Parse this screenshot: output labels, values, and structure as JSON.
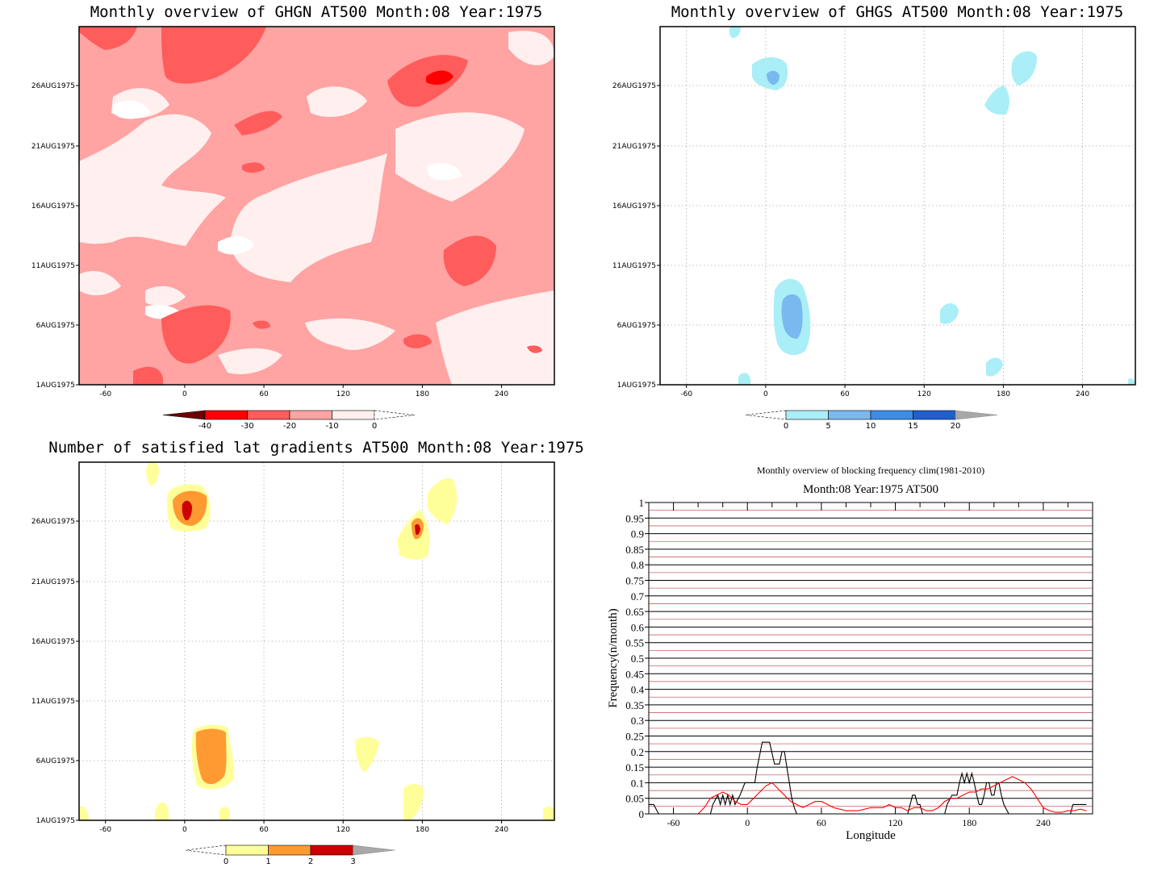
{
  "panels": {
    "ghgn": {
      "title": "Monthly overview of GHGN AT500 Month:08 Year:1975",
      "y_ticks": [
        "26AUG1975",
        "21AUG1975",
        "16AUG1975",
        "11AUG1975",
        "6AUG1975",
        "1AUG1975"
      ],
      "x_ticks": [
        "-60",
        "0",
        "60",
        "120",
        "180",
        "240"
      ],
      "colorbar": [
        "-40",
        "-30",
        "-20",
        "-10",
        "0"
      ],
      "colors": [
        "#6b0000",
        "#ff0000",
        "#ff5c5c",
        "#ffa3a3",
        "#fff0ef"
      ]
    },
    "ghgs": {
      "title": "Monthly overview of GHGS AT500 Month:08 Year:1975",
      "y_ticks": [
        "26AUG1975",
        "21AUG1975",
        "16AUG1975",
        "11AUG1975",
        "6AUG1975",
        "1AUG1975"
      ],
      "x_ticks": [
        "-60",
        "0",
        "60",
        "120",
        "180",
        "240"
      ],
      "colorbar": [
        "0",
        "5",
        "10",
        "15",
        "20"
      ],
      "colors": [
        "#aaeef7",
        "#7ab8f0",
        "#3a8ee8",
        "#1f5fd0",
        "#a8a8a8"
      ]
    },
    "lat": {
      "title": "Number of satisfied lat gradients AT500 Month:08 Year:1975",
      "y_ticks": [
        "26AUG1975",
        "21AUG1975",
        "16AUG1975",
        "11AUG1975",
        "6AUG1975",
        "1AUG1975"
      ],
      "x_ticks": [
        "-60",
        "0",
        "60",
        "120",
        "180",
        "240"
      ],
      "colorbar": [
        "0",
        "1",
        "2",
        "3"
      ],
      "colors": [
        "#ffff99",
        "#ff9a33",
        "#cc0000",
        "#a8a8a8"
      ]
    }
  },
  "chart_data": [
    {
      "type": "heatmap",
      "title": "Monthly overview of GHGN AT500 Month:08 Year:1975",
      "x_range": [
        -80,
        280
      ],
      "y_range": [
        "1AUG1975",
        "31AUG1975"
      ],
      "levels": [
        -40,
        -30,
        -20,
        -10,
        0
      ]
    },
    {
      "type": "heatmap",
      "title": "Monthly overview of GHGS AT500 Month:08 Year:1975",
      "x_range": [
        -80,
        280
      ],
      "y_range": [
        "1AUG1975",
        "31AUG1975"
      ],
      "levels": [
        0,
        5,
        10,
        15,
        20
      ]
    },
    {
      "type": "heatmap",
      "title": "Number of satisfied lat gradients AT500 Month:08 Year:1975",
      "x_range": [
        -80,
        280
      ],
      "y_range": [
        "1AUG1975",
        "31AUG1975"
      ],
      "levels": [
        0,
        1,
        2,
        3
      ]
    },
    {
      "type": "line",
      "title": "Monthly overview of blocking frequency clim(1981-2010)",
      "subtitle": "Month:08 Year:1975  AT500",
      "xlabel": "Longitude",
      "ylabel": "Frequency(n/month)",
      "xlim": [
        -80,
        280
      ],
      "ylim": [
        0,
        1
      ],
      "x_ticks": [
        "-60",
        "0",
        "60",
        "120",
        "180",
        "240"
      ],
      "y_ticks": [
        "0",
        "0.05",
        "0.1",
        "0.15",
        "0.2",
        "0.25",
        "0.3",
        "0.35",
        "0.4",
        "0.45",
        "0.5",
        "0.55",
        "0.6",
        "0.65",
        "0.7",
        "0.75",
        "0.8",
        "0.85",
        "0.9",
        "0.95",
        "1"
      ],
      "grid": true,
      "series": [
        {
          "color": "#000000",
          "x": [
            -80,
            -76,
            -72,
            -30,
            -28,
            -24,
            -22,
            -20,
            -18,
            -16,
            -14,
            -12,
            -10,
            -6,
            -2,
            2,
            6,
            8,
            12,
            16,
            18,
            22,
            24,
            26,
            28,
            30,
            32,
            34,
            36,
            38,
            40,
            130,
            132,
            134,
            136,
            138,
            140,
            142,
            160,
            162,
            166,
            170,
            172,
            174,
            176,
            178,
            180,
            182,
            184,
            186,
            188,
            190,
            192,
            194,
            196,
            198,
            200,
            202,
            204,
            206,
            208,
            212,
            240,
            262,
            264,
            268,
            272,
            275
          ],
          "y": [
            0.03,
            0.03,
            0,
            0,
            0.03,
            0.06,
            0.03,
            0.06,
            0.03,
            0.06,
            0.03,
            0.06,
            0.03,
            0.06,
            0.1,
            0.1,
            0.1,
            0.15,
            0.23,
            0.23,
            0.23,
            0.16,
            0.16,
            0.16,
            0.2,
            0.2,
            0.15,
            0.1,
            0.05,
            0.02,
            0,
            0,
            0.03,
            0.06,
            0.06,
            0.03,
            0.03,
            0,
            0,
            0.03,
            0.06,
            0.06,
            0.1,
            0.13,
            0.1,
            0.13,
            0.1,
            0.13,
            0.1,
            0.06,
            0.03,
            0.03,
            0.06,
            0.1,
            0.1,
            0.06,
            0.06,
            0.1,
            0.1,
            0.06,
            0.03,
            0,
            0,
            0,
            0.03,
            0.03,
            0.03,
            0.03
          ]
        },
        {
          "color": "#ff0000",
          "x": [
            -80,
            -40,
            -35,
            -30,
            -25,
            -20,
            -15,
            -10,
            -5,
            0,
            5,
            10,
            15,
            20,
            25,
            30,
            35,
            40,
            45,
            50,
            55,
            60,
            65,
            70,
            80,
            90,
            100,
            110,
            115,
            120,
            125,
            130,
            135,
            140,
            145,
            150,
            155,
            160,
            165,
            170,
            175,
            180,
            185,
            190,
            195,
            200,
            205,
            210,
            215,
            220,
            225,
            230,
            235,
            240,
            245,
            250,
            255,
            260,
            265,
            270,
            275
          ],
          "y": [
            0,
            0,
            0.02,
            0.05,
            0.06,
            0.07,
            0.06,
            0.04,
            0.03,
            0.03,
            0.05,
            0.07,
            0.09,
            0.1,
            0.08,
            0.06,
            0.04,
            0.03,
            0.02,
            0.03,
            0.04,
            0.04,
            0.03,
            0.02,
            0.01,
            0.01,
            0.02,
            0.02,
            0.03,
            0.02,
            0.02,
            0.01,
            0.02,
            0.02,
            0.01,
            0.01,
            0.02,
            0.04,
            0.05,
            0.05,
            0.06,
            0.07,
            0.07,
            0.08,
            0.08,
            0.09,
            0.1,
            0.11,
            0.12,
            0.11,
            0.1,
            0.08,
            0.05,
            0.02,
            0.01,
            0.005,
            0.005,
            0.01,
            0.01,
            0.015,
            0.01
          ]
        }
      ]
    }
  ]
}
